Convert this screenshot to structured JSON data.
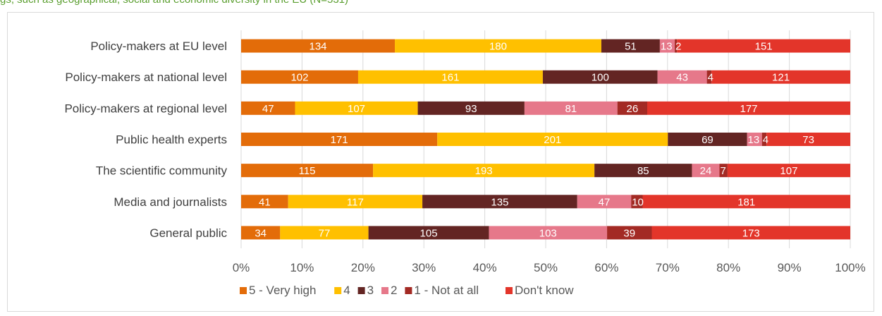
{
  "caption_fragment": "gs, such as geographical, social and economic diversity in the EU (N=531)",
  "chart_data": {
    "type": "bar",
    "orientation": "horizontal",
    "stacked": "percent",
    "categories": [
      "Policy-makers at EU level",
      "Policy-makers at national level",
      "Policy-makers at regional level",
      "Public health experts",
      "The scientific community",
      "Media and journalists",
      "General public"
    ],
    "series": [
      {
        "name": "5 - Very high",
        "color": "#e36c09",
        "values": [
          134,
          102,
          47,
          171,
          115,
          41,
          34
        ],
        "labels": [
          "134",
          "102",
          "47",
          "171",
          "115",
          "41",
          "34"
        ]
      },
      {
        "name": "4",
        "color": "#ffc000",
        "values": [
          180,
          161,
          107,
          201,
          193,
          117,
          77
        ],
        "labels": [
          "180",
          "161",
          "107",
          "201",
          "193",
          "117",
          "77"
        ]
      },
      {
        "name": "3",
        "color": "#632523",
        "values": [
          51,
          100,
          93,
          69,
          85,
          135,
          105
        ],
        "labels": [
          "51",
          "100",
          "93",
          "69",
          "85",
          "135",
          "105"
        ]
      },
      {
        "name": "2",
        "color": "#e6788a",
        "values": [
          13,
          43,
          81,
          13,
          24,
          47,
          103
        ],
        "labels": [
          "13",
          "43",
          "81",
          "13",
          "24",
          "47",
          "103"
        ]
      },
      {
        "name": "1 - Not at all",
        "color": "#a32a24",
        "values": [
          2,
          4,
          26,
          4,
          7,
          10,
          39
        ],
        "labels": [
          "2",
          "4",
          "26",
          "4",
          "7",
          "10",
          "39"
        ]
      },
      {
        "name": "Don't know",
        "color": "#e3352a",
        "values": [
          151,
          121,
          177,
          73,
          107,
          181,
          173
        ],
        "labels": [
          "151",
          "121",
          "177",
          "73",
          "107",
          "181",
          "173"
        ]
      }
    ],
    "xlim": [
      0,
      1
    ],
    "xticks": [
      "0%",
      "10%",
      "20%",
      "30%",
      "40%",
      "50%",
      "60%",
      "70%",
      "80%",
      "90%",
      "100%"
    ],
    "grid": "vertical",
    "legend_position": "bottom"
  }
}
